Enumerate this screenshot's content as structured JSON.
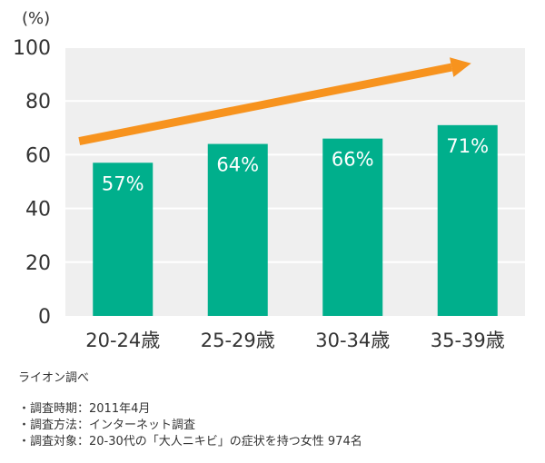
{
  "chart_data": {
    "type": "bar",
    "unit_label": "(%)",
    "categories": [
      "20-24歳",
      "25-29歳",
      "30-34歳",
      "35-39歳"
    ],
    "values": [
      57,
      64,
      66,
      71
    ],
    "data_labels": [
      "57%",
      "64%",
      "66%",
      "71%"
    ],
    "ylim": [
      0,
      100
    ],
    "yticks": [
      0,
      20,
      40,
      60,
      80,
      100
    ],
    "grid": true,
    "trend_arrow": {
      "from": {
        "category": "20-24歳",
        "value": 65
      },
      "to": {
        "category": "35-39歳",
        "value": 94
      }
    },
    "colors": {
      "bar": "#00AF8C",
      "arrow": "#F7931E",
      "plot_background": "#EFEFEF",
      "grid": "#FFFFFF"
    }
  },
  "notes": {
    "source": "ライオン調べ",
    "items": [
      "・調査時期：2011年4月",
      "・調査方法：インターネット調査",
      "・調査対象：20-30代の「大人ニキビ」の症状を持つ女性 974名"
    ]
  }
}
